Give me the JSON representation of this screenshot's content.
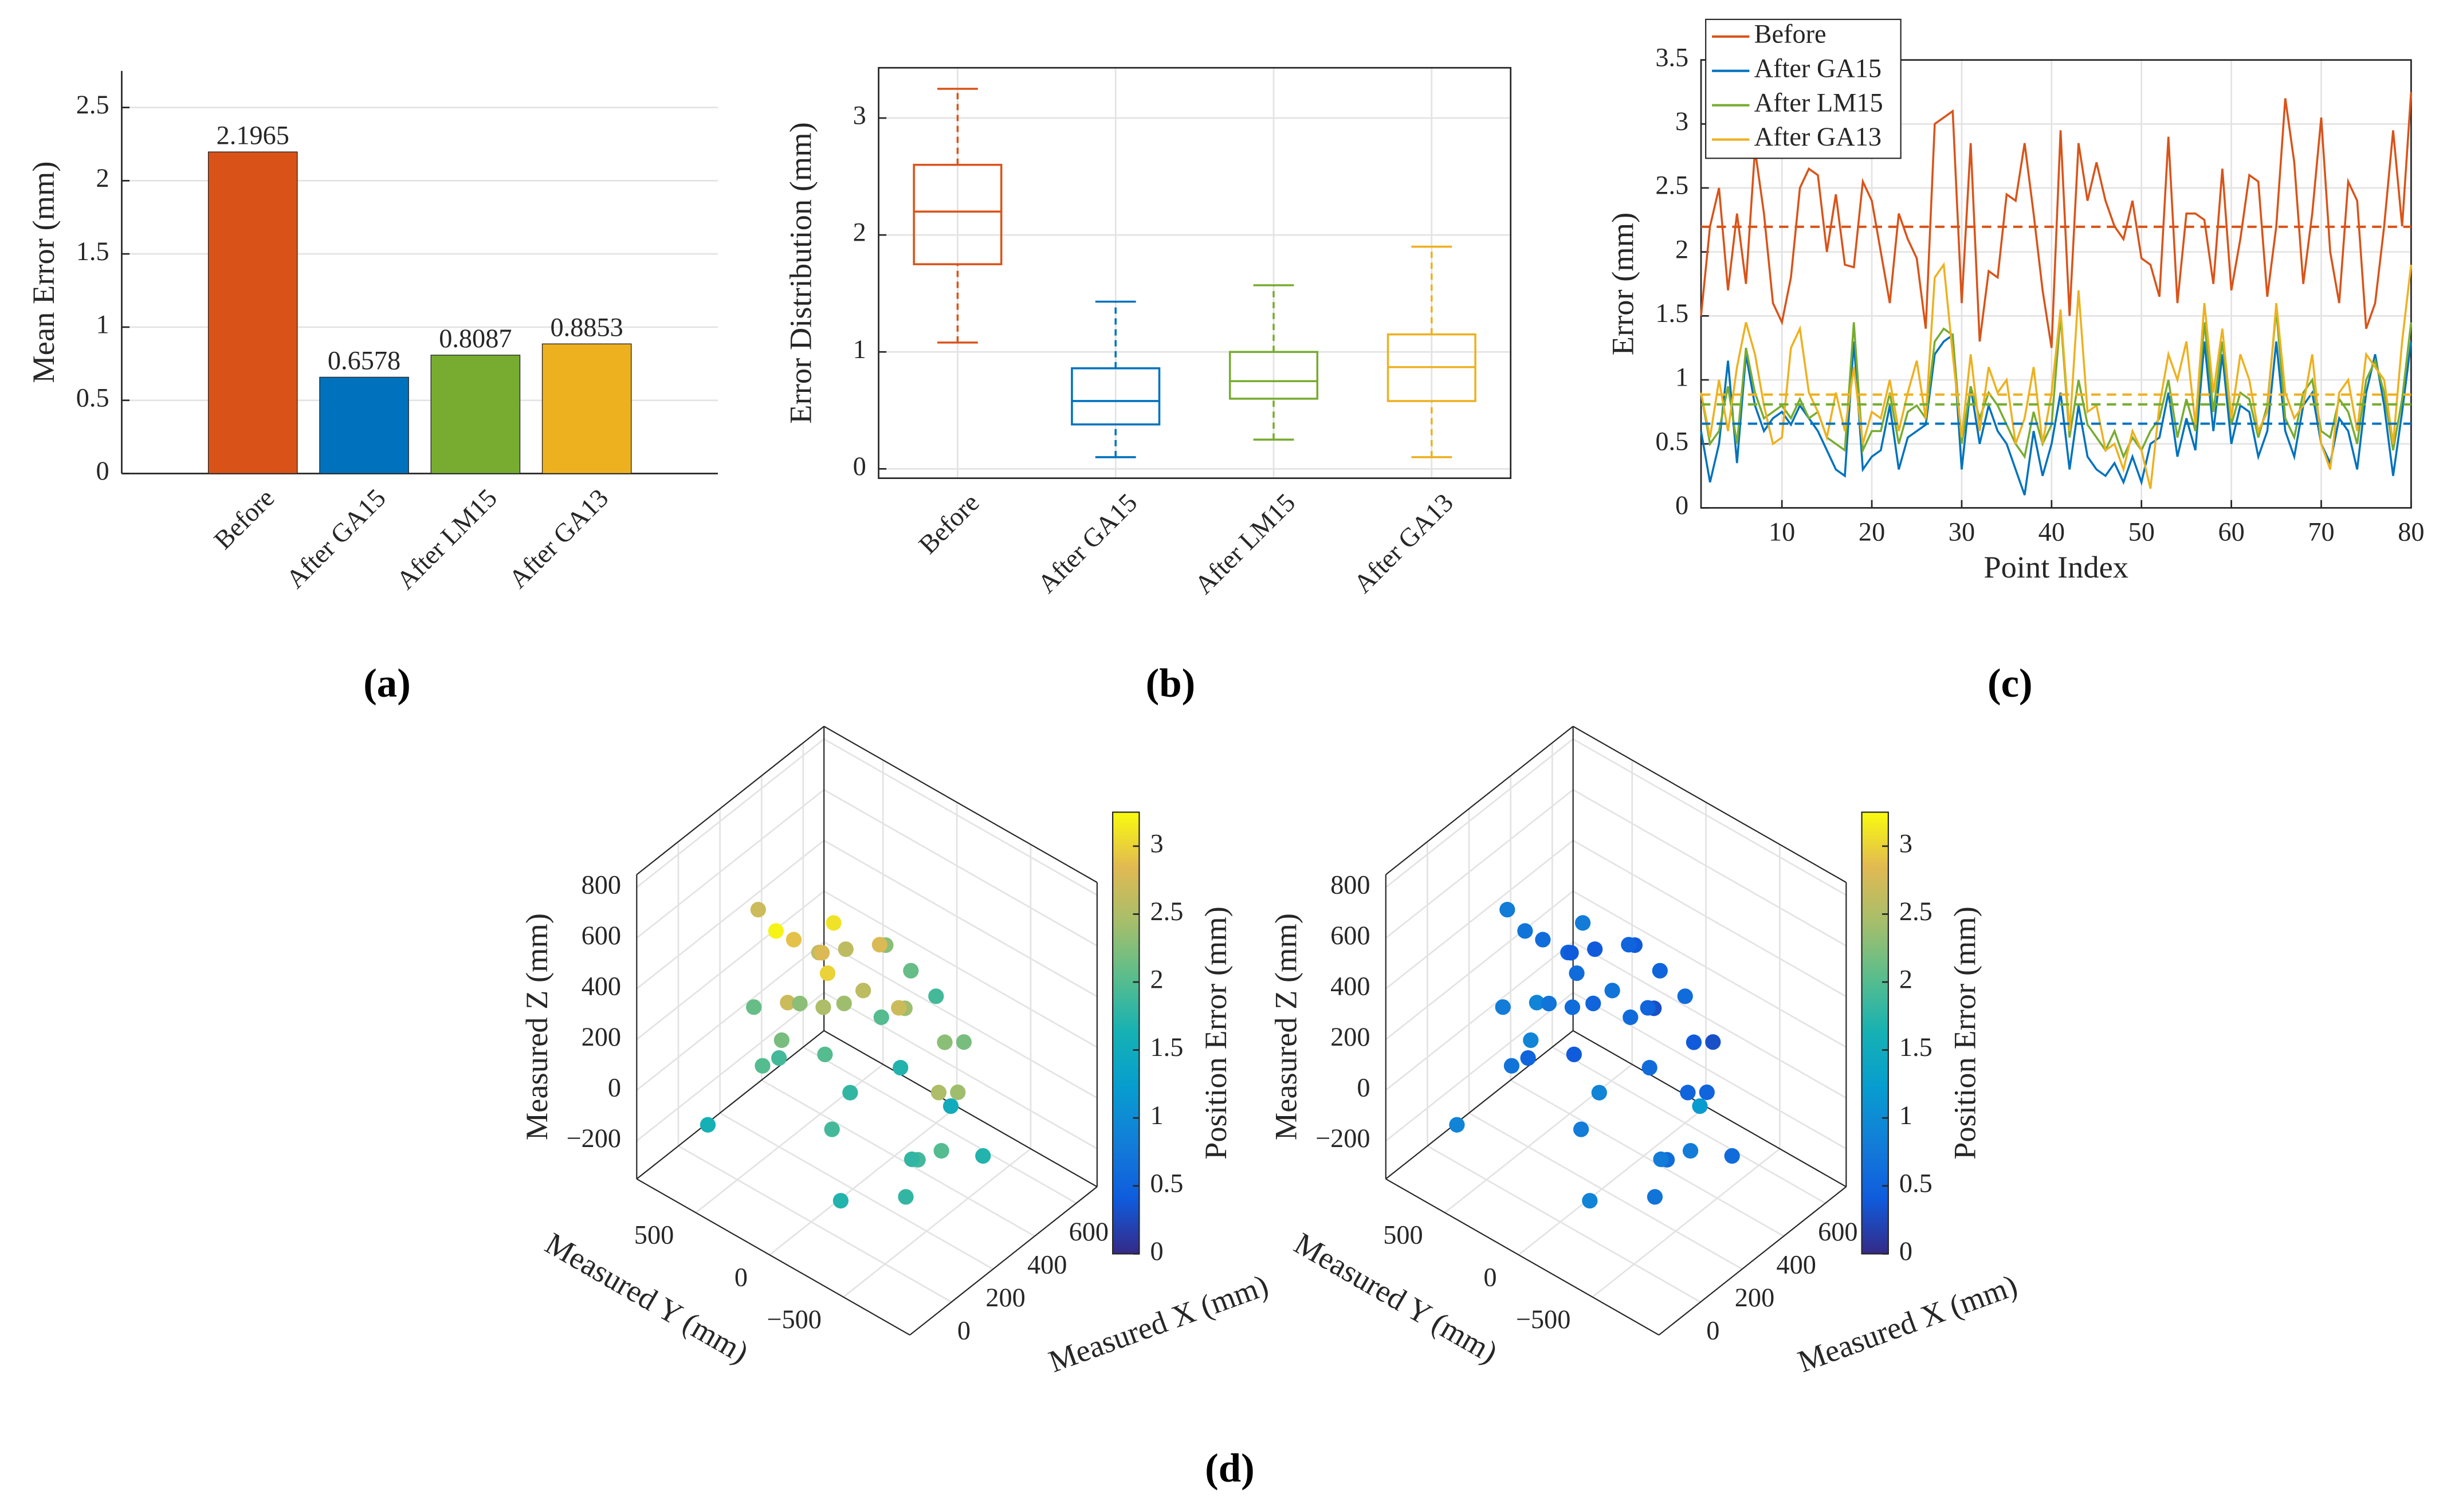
{
  "chart_data": [
    {
      "type": "bar",
      "caption": "(a)",
      "ylabel": "Mean Error (mm)",
      "categories": [
        "Before",
        "After GA15",
        "After LM15",
        "After GA13"
      ],
      "values": [
        2.1965,
        0.6578,
        0.8087,
        0.8853
      ],
      "colors": [
        "#d95319",
        "#0072bd",
        "#77ac30",
        "#edb120"
      ],
      "ylim": [
        0,
        2.75
      ],
      "yticks": [
        0,
        0.5,
        1,
        1.5,
        2,
        2.5
      ],
      "grid": true
    },
    {
      "type": "box",
      "caption": "(b)",
      "ylabel": "Error Distribution (mm)",
      "categories": [
        "Before",
        "After GA15",
        "After LM15",
        "After GA13"
      ],
      "colors": [
        "#d95319",
        "#0072bd",
        "#77ac30",
        "#edb120"
      ],
      "stats": [
        {
          "min": 1.08,
          "q1": 1.75,
          "median": 2.2,
          "q3": 2.6,
          "max": 3.25
        },
        {
          "min": 0.1,
          "q1": 0.38,
          "median": 0.58,
          "q3": 0.86,
          "max": 1.43
        },
        {
          "min": 0.25,
          "q1": 0.6,
          "median": 0.75,
          "q3": 1.0,
          "max": 1.57
        },
        {
          "min": 0.1,
          "q1": 0.58,
          "median": 0.87,
          "q3": 1.15,
          "max": 1.9
        }
      ],
      "ylim": [
        -0.08,
        3.43
      ],
      "yticks": [
        0,
        1,
        2,
        3
      ],
      "grid": true
    },
    {
      "type": "line",
      "caption": "(c)",
      "xlabel": "Point Index",
      "ylabel": "Error (mm)",
      "x": [
        1,
        2,
        3,
        4,
        5,
        6,
        7,
        8,
        9,
        10,
        11,
        12,
        13,
        14,
        15,
        16,
        17,
        18,
        19,
        20,
        21,
        22,
        23,
        24,
        25,
        26,
        27,
        28,
        29,
        30,
        31,
        32,
        33,
        34,
        35,
        36,
        37,
        38,
        39,
        40,
        41,
        42,
        43,
        44,
        45,
        46,
        47,
        48,
        49,
        50,
        51,
        52,
        53,
        54,
        55,
        56,
        57,
        58,
        59,
        60,
        61,
        62,
        63,
        64,
        65,
        66,
        67,
        68,
        69,
        70,
        71,
        72,
        73,
        74,
        75,
        76,
        77,
        78,
        79,
        80
      ],
      "series": [
        {
          "name": "Before",
          "color": "#d95319",
          "mean": 2.1965,
          "values": [
            1.5,
            2.2,
            2.5,
            1.7,
            2.3,
            1.75,
            2.8,
            2.3,
            1.6,
            1.45,
            1.8,
            2.5,
            2.65,
            2.6,
            2.0,
            2.45,
            1.9,
            1.88,
            2.55,
            2.4,
            2.0,
            1.6,
            2.3,
            2.1,
            1.95,
            1.4,
            3.0,
            3.05,
            3.1,
            1.6,
            2.85,
            1.3,
            1.85,
            1.8,
            2.45,
            2.4,
            2.85,
            2.3,
            1.7,
            1.25,
            2.95,
            1.5,
            2.85,
            2.4,
            2.7,
            2.4,
            2.2,
            2.1,
            2.4,
            1.95,
            1.9,
            1.65,
            2.9,
            1.6,
            2.3,
            2.3,
            2.25,
            1.75,
            2.65,
            1.7,
            2.1,
            2.6,
            2.55,
            1.65,
            2.2,
            3.2,
            2.7,
            1.75,
            2.3,
            3.05,
            2.0,
            1.6,
            2.55,
            2.4,
            1.4,
            1.6,
            2.2,
            2.95,
            2.2,
            3.25
          ]
        },
        {
          "name": "After GA15",
          "color": "#0072bd",
          "mean": 0.6578,
          "values": [
            0.6,
            0.2,
            0.5,
            1.15,
            0.35,
            1.2,
            0.8,
            0.6,
            0.7,
            0.75,
            0.65,
            0.8,
            0.7,
            0.6,
            0.45,
            0.3,
            0.25,
            1.3,
            0.3,
            0.4,
            0.45,
            0.8,
            0.3,
            0.55,
            0.6,
            0.65,
            1.2,
            1.3,
            1.35,
            0.3,
            0.95,
            0.5,
            0.8,
            0.6,
            0.5,
            0.3,
            0.1,
            0.6,
            0.25,
            0.5,
            0.9,
            0.3,
            0.8,
            0.4,
            0.3,
            0.25,
            0.35,
            0.2,
            0.4,
            0.2,
            0.5,
            0.55,
            0.9,
            0.4,
            0.7,
            0.45,
            1.3,
            0.6,
            1.2,
            0.5,
            0.8,
            0.75,
            0.4,
            0.6,
            1.3,
            0.6,
            0.4,
            0.8,
            0.9,
            0.5,
            0.35,
            0.7,
            0.6,
            0.3,
            0.9,
            1.2,
            0.8,
            0.25,
            0.75,
            1.3
          ]
        },
        {
          "name": "After LM15",
          "color": "#77ac30",
          "mean": 0.8087,
          "values": [
            0.9,
            0.5,
            0.6,
            0.95,
            0.5,
            1.25,
            0.9,
            0.7,
            0.75,
            0.8,
            0.7,
            0.85,
            0.7,
            0.75,
            0.55,
            0.5,
            0.45,
            1.45,
            0.45,
            0.6,
            0.6,
            0.9,
            0.5,
            0.75,
            0.8,
            0.7,
            1.3,
            1.4,
            1.35,
            0.5,
            0.95,
            0.7,
            0.9,
            0.8,
            0.65,
            0.5,
            0.4,
            0.75,
            0.5,
            0.65,
            1.5,
            0.55,
            1.0,
            0.65,
            0.55,
            0.45,
            0.6,
            0.4,
            0.55,
            0.45,
            0.6,
            0.7,
            1.0,
            0.55,
            0.85,
            0.6,
            1.45,
            0.75,
            1.3,
            0.65,
            0.9,
            0.85,
            0.55,
            0.8,
            1.55,
            0.7,
            0.55,
            0.9,
            1.0,
            0.6,
            0.55,
            0.85,
            0.75,
            0.5,
            1.0,
            1.15,
            0.9,
            0.45,
            0.85,
            1.45
          ]
        },
        {
          "name": "After GA13",
          "color": "#edb120",
          "mean": 0.8853,
          "values": [
            0.9,
            0.55,
            1.0,
            0.6,
            1.1,
            1.45,
            1.2,
            0.8,
            0.5,
            0.55,
            1.25,
            1.4,
            0.9,
            0.75,
            0.55,
            0.9,
            0.6,
            1.1,
            0.5,
            0.75,
            0.7,
            1.0,
            0.6,
            0.9,
            1.15,
            0.7,
            1.8,
            1.9,
            1.2,
            0.55,
            1.2,
            0.6,
            1.1,
            0.9,
            1.0,
            0.5,
            0.7,
            1.1,
            0.5,
            0.9,
            1.55,
            0.6,
            1.7,
            0.75,
            0.8,
            0.45,
            0.5,
            0.3,
            0.6,
            0.45,
            0.15,
            0.8,
            1.2,
            1.0,
            1.3,
            0.65,
            1.6,
            0.9,
            1.4,
            0.7,
            1.2,
            1.0,
            0.6,
            0.75,
            1.6,
            0.9,
            0.7,
            0.8,
            1.2,
            0.5,
            0.3,
            0.9,
            1.0,
            0.6,
            1.2,
            1.1,
            1.0,
            0.5,
            1.3,
            1.9
          ]
        }
      ],
      "xlim": [
        1,
        80
      ],
      "xticks": [
        10,
        20,
        30,
        40,
        50,
        60,
        70,
        80
      ],
      "ylim": [
        0,
        3.5
      ],
      "yticks": [
        0,
        0.5,
        1,
        1.5,
        2,
        2.5,
        3,
        3.5
      ],
      "grid": true,
      "legend": "top-left"
    },
    {
      "type": "scatter3d",
      "caption": "(d)",
      "xlabel": "Measured X (mm)",
      "ylabel": "Measured Y (mm)",
      "zlabel": "Measured Z (mm)",
      "x": [
        0,
        100,
        150,
        200,
        250,
        300,
        100,
        200,
        300,
        150,
        50,
        200,
        350,
        400,
        500,
        600,
        300,
        200,
        400,
        500,
        450,
        350,
        250,
        500,
        550,
        600,
        100,
        0,
        200,
        350,
        450,
        150,
        250,
        400,
        300,
        450,
        550,
        100,
        0,
        400
      ],
      "y": [
        700,
        500,
        450,
        400,
        300,
        350,
        300,
        200,
        200,
        600,
        400,
        500,
        400,
        300,
        100,
        -100,
        -300,
        -400,
        -300,
        -200,
        0,
        -100,
        0,
        200,
        100,
        0,
        -500,
        -200,
        -600,
        -500,
        -400,
        100,
        200,
        100,
        500,
        400,
        300,
        0,
        200,
        -600
      ],
      "z": [
        -200,
        650,
        550,
        500,
        450,
        400,
        350,
        300,
        250,
        200,
        100,
        0,
        -50,
        -200,
        -100,
        -250,
        -200,
        -100,
        0,
        100,
        200,
        300,
        400,
        350,
        250,
        150,
        -150,
        -200,
        0,
        100,
        200,
        500,
        600,
        450,
        150,
        300,
        0,
        -50,
        300,
        -150
      ],
      "values": [
        1.6,
        2.7,
        3.2,
        2.9,
        2.6,
        2.8,
        2.7,
        2.5,
        2.4,
        2.1,
        2.0,
        1.9,
        2.0,
        1.8,
        1.7,
        1.5,
        1.9,
        1.8,
        2.5,
        2.3,
        2.4,
        2.7,
        2.6,
        2.3,
        2.1,
        1.9,
        1.8,
        1.7,
        2.0,
        2.4,
        2.2,
        3.0,
        3.1,
        2.8,
        2.3,
        2.6,
        2.0,
        1.9,
        2.2,
        1.7
      ],
      "xlim": [
        -200,
        700
      ],
      "xticks": [
        0,
        200,
        400,
        600
      ],
      "ylim": [
        -950,
        900
      ],
      "yticks": [
        {
          "value": -500,
          "label": "−500"
        },
        0,
        500
      ],
      "zlim": [
        -350,
        850
      ],
      "zticks": [
        {
          "value": -200,
          "label": "−200"
        },
        0,
        200,
        400,
        600,
        800
      ],
      "colormap": "parula",
      "colorbar": {
        "label": "Position Error (mm)",
        "lim": [
          0,
          3.25
        ],
        "ticks": [
          0,
          0.5,
          1,
          1.5,
          2,
          2.5,
          3
        ]
      },
      "grid": true
    },
    {
      "type": "scatter3d",
      "xlabel": "Measured X (mm)",
      "ylabel": "Measured Y (mm)",
      "zlabel": "Measured Z (mm)",
      "x": [
        0,
        100,
        150,
        200,
        250,
        300,
        100,
        200,
        300,
        150,
        50,
        200,
        350,
        400,
        500,
        600,
        300,
        200,
        400,
        500,
        450,
        350,
        250,
        500,
        550,
        600,
        100,
        0,
        200,
        350,
        450,
        150,
        250,
        400,
        300,
        450,
        550,
        100,
        0,
        400
      ],
      "y": [
        700,
        500,
        450,
        400,
        300,
        350,
        300,
        200,
        200,
        600,
        400,
        500,
        400,
        300,
        100,
        -100,
        -300,
        -400,
        -300,
        -200,
        0,
        -100,
        0,
        200,
        100,
        0,
        -500,
        -200,
        -600,
        -500,
        -400,
        100,
        200,
        100,
        500,
        400,
        300,
        0,
        200,
        -600
      ],
      "z": [
        -200,
        650,
        550,
        500,
        450,
        400,
        350,
        300,
        250,
        200,
        100,
        0,
        -50,
        -200,
        -100,
        -250,
        -200,
        -100,
        0,
        100,
        200,
        300,
        400,
        350,
        250,
        150,
        -150,
        -200,
        0,
        100,
        200,
        500,
        600,
        450,
        150,
        300,
        0,
        -50,
        300,
        -150
      ],
      "values": [
        0.9,
        0.8,
        0.7,
        0.6,
        0.5,
        0.4,
        0.9,
        0.6,
        0.5,
        0.8,
        0.7,
        0.5,
        0.4,
        0.9,
        0.6,
        1.2,
        0.6,
        0.8,
        0.5,
        0.4,
        0.3,
        0.5,
        0.7,
        0.4,
        0.5,
        0.6,
        0.7,
        0.9,
        0.8,
        0.5,
        0.3,
        0.6,
        0.8,
        0.5,
        0.7,
        0.4,
        0.6,
        0.8,
        0.9,
        0.6
      ],
      "xlim": [
        -200,
        700
      ],
      "xticks": [
        0,
        200,
        400,
        600
      ],
      "ylim": [
        -950,
        900
      ],
      "yticks": [
        {
          "value": -500,
          "label": "−500"
        },
        0,
        500
      ],
      "zlim": [
        -350,
        850
      ],
      "zticks": [
        {
          "value": -200,
          "label": "−200"
        },
        0,
        200,
        400,
        600,
        800
      ],
      "colormap": "parula",
      "colorbar": {
        "label": "Position Error (mm)",
        "lim": [
          0,
          3.25
        ],
        "ticks": [
          0,
          0.5,
          1,
          1.5,
          2,
          2.5,
          3
        ]
      },
      "grid": true
    }
  ]
}
